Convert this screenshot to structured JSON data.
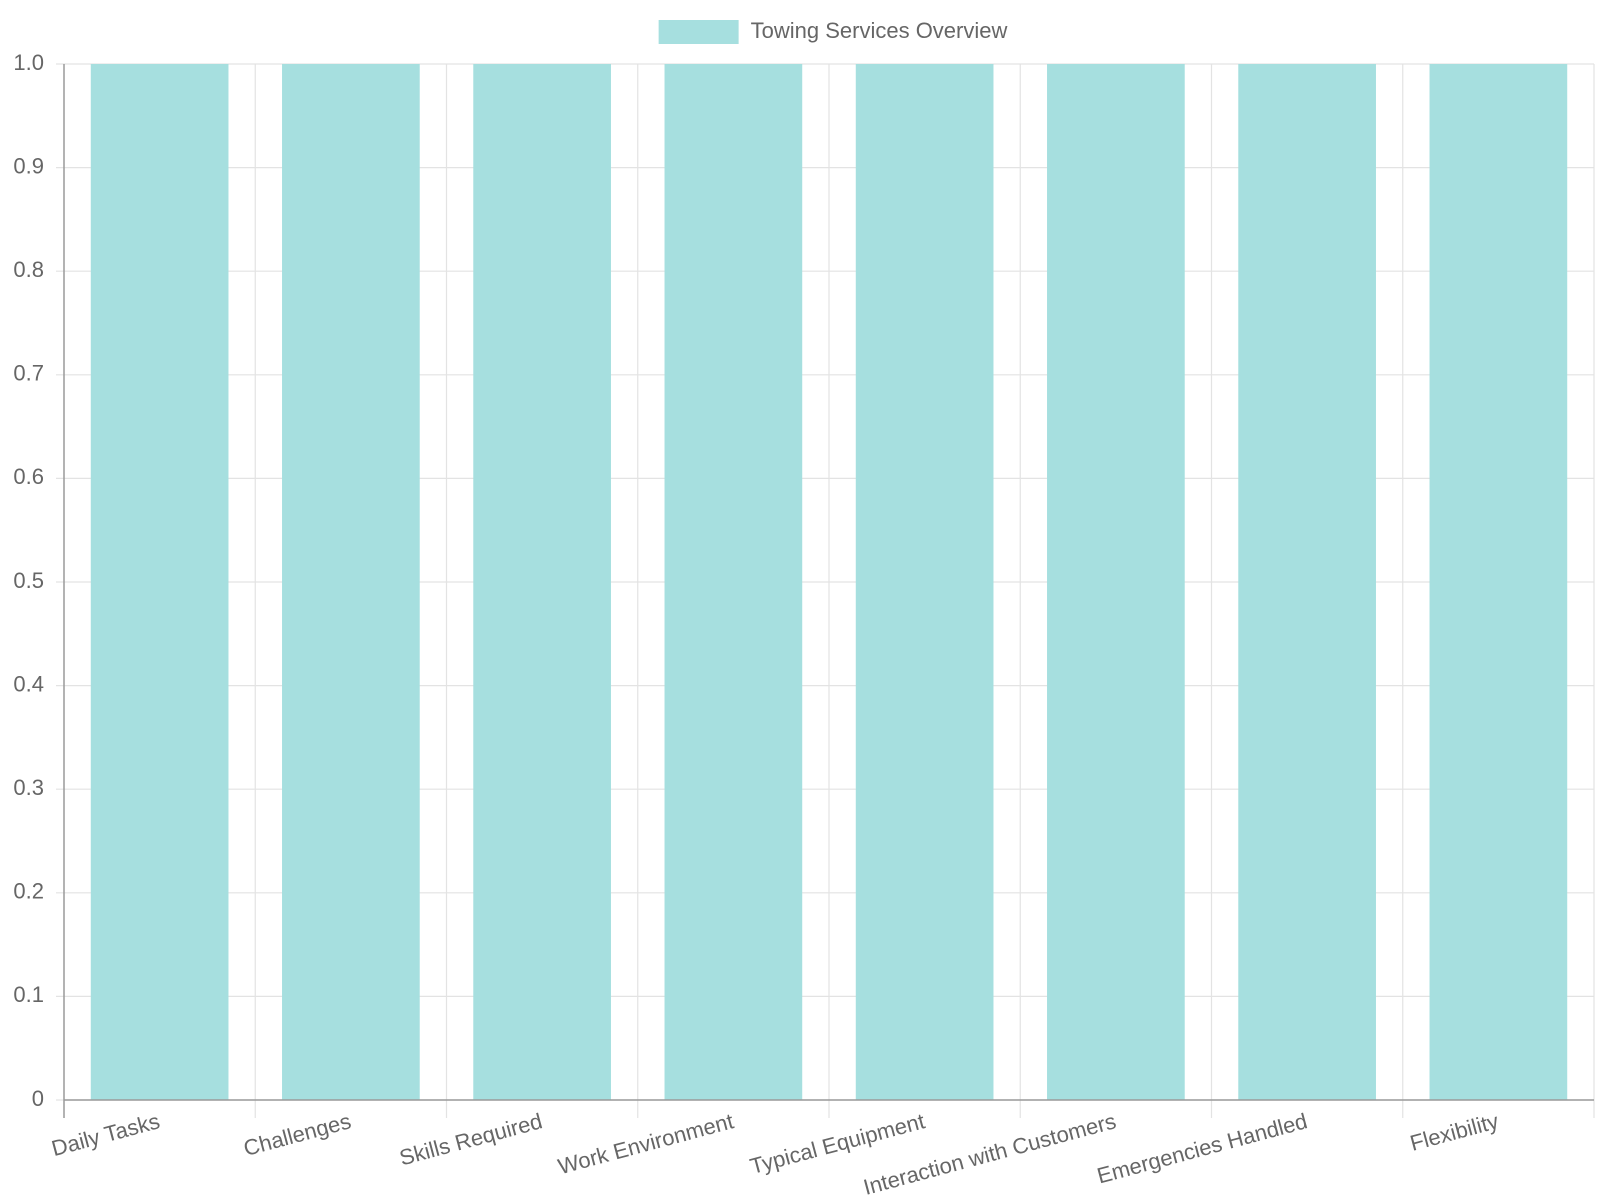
{
  "chart_data": {
    "type": "bar",
    "categories": [
      "Daily Tasks",
      "Challenges",
      "Skills Required",
      "Work Environment",
      "Typical Equipment",
      "Interaction with Customers",
      "Emergencies Handled",
      "Flexibility"
    ],
    "series": [
      {
        "name": "Towing Services Overview",
        "color": "#a6dfdf",
        "values": [
          1,
          1,
          1,
          1,
          1,
          1,
          1,
          1
        ]
      }
    ],
    "ylim": [
      0,
      1
    ],
    "yticks": [
      0,
      0.1,
      0.2,
      0.3,
      0.4,
      0.5,
      0.6,
      0.7,
      0.8,
      0.9,
      {
        "value": 1,
        "label": "1.0"
      }
    ],
    "grid": true,
    "legend": "top"
  }
}
